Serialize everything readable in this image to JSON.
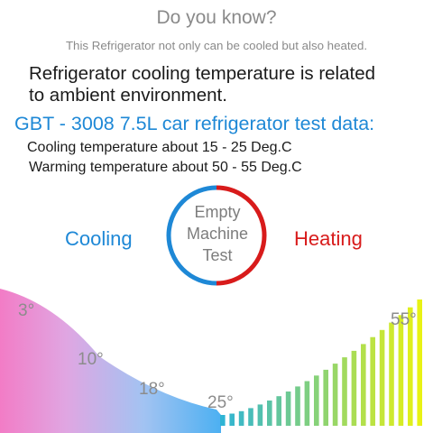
{
  "header": {
    "title": "Do you know?",
    "intro": "This Refrigerator not only can be cooled but also heated."
  },
  "statement": {
    "line1": "Refrigerator cooling temperature is related",
    "line2": "to ambient environment."
  },
  "test": {
    "title": "GBT - 3008 7.5L car refrigerator test data:",
    "cooling": "Cooling temperature about 15 - 25 Deg.C",
    "warming": "Warming temperature about 50 - 55 Deg.C"
  },
  "modes": {
    "cooling": "Cooling",
    "heating": "Heating",
    "center_lines": [
      "Empty",
      "Machine",
      "Test"
    ]
  },
  "colors": {
    "cooling": "#1e88d6",
    "heating": "#d81b1b"
  },
  "temperatures": {
    "cooling": [
      "3°",
      "10°",
      "18°",
      "25°"
    ],
    "heating": [
      "55°"
    ]
  }
}
